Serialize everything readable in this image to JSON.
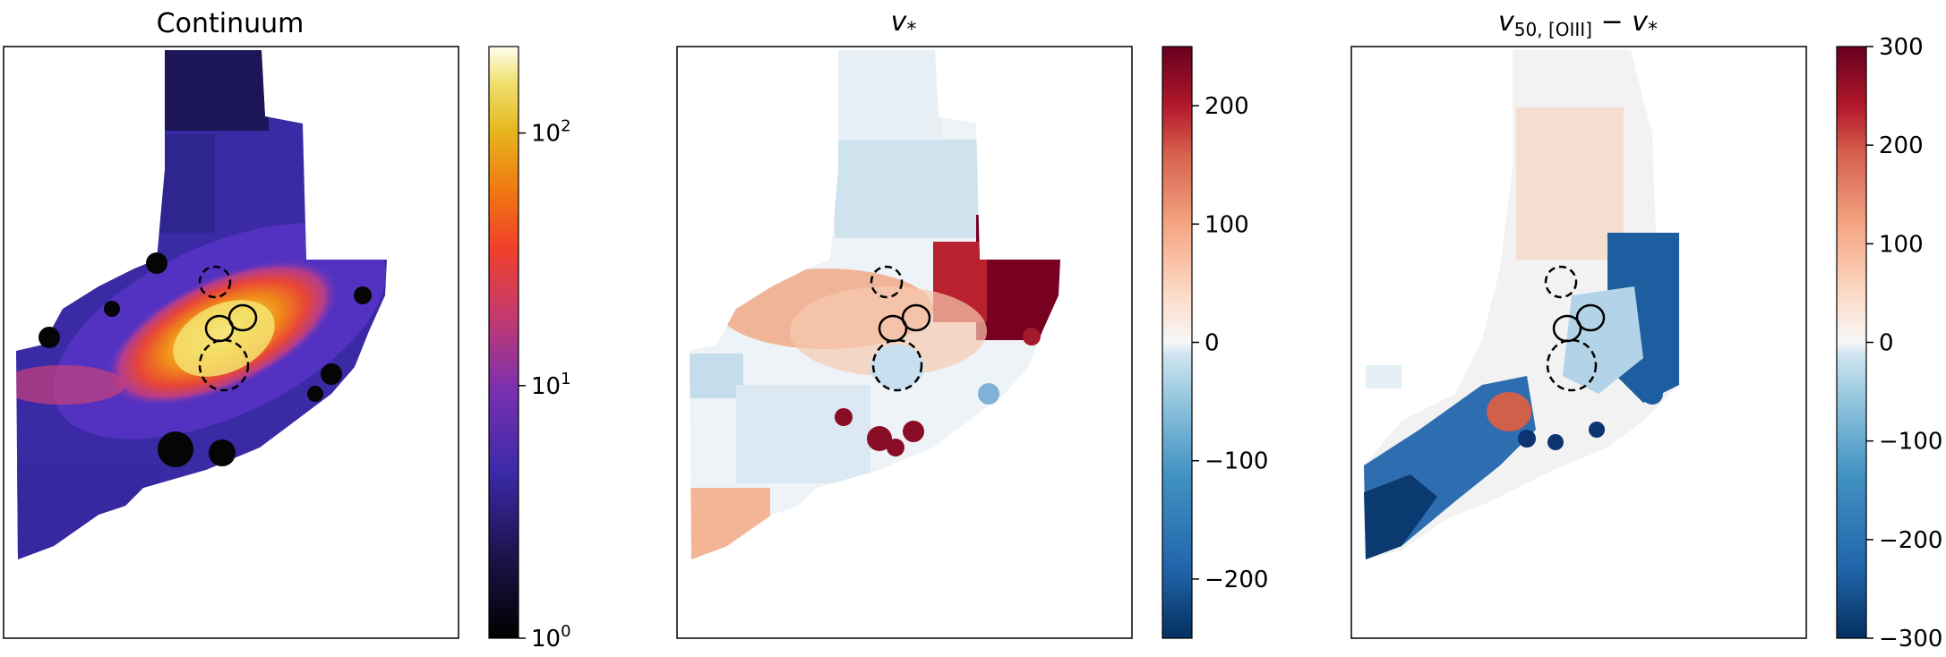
{
  "chart_data": [
    {
      "type": "heatmap",
      "title": "Continuum",
      "colormap": "CMRmap (black → purple → red → orange → yellow → white)",
      "colorbar": {
        "scale": "log",
        "range": [
          1,
          220
        ],
        "ticks": [
          {
            "value": 1,
            "label_base": "10",
            "label_exp": "0"
          },
          {
            "value": 10,
            "label_base": "10",
            "label_exp": "1"
          },
          {
            "value": 100,
            "label_base": "10",
            "label_exp": "2"
          }
        ]
      },
      "markers": [
        {
          "style": "dashed",
          "size": "small"
        },
        {
          "style": "solid",
          "size": "small"
        },
        {
          "style": "solid",
          "size": "small"
        },
        {
          "style": "dashed",
          "size": "large"
        }
      ]
    },
    {
      "type": "heatmap",
      "title": "v*",
      "title_main": "v",
      "title_sub": "*",
      "colormap": "RdBu_r (blue negative, white zero, red positive)",
      "colorbar": {
        "scale": "linear",
        "range": [
          -250,
          250
        ],
        "ticks": [
          {
            "value": 200,
            "label": "200"
          },
          {
            "value": 100,
            "label": "100"
          },
          {
            "value": 0,
            "label": "0"
          },
          {
            "value": -100,
            "label": "−100"
          },
          {
            "value": -200,
            "label": "−200"
          }
        ]
      },
      "markers": [
        {
          "style": "dashed",
          "size": "small"
        },
        {
          "style": "solid",
          "size": "small"
        },
        {
          "style": "solid",
          "size": "small"
        },
        {
          "style": "dashed",
          "size": "large"
        }
      ]
    },
    {
      "type": "heatmap",
      "title": "v50,[OIII] − v*",
      "title_main": "v",
      "title_sub1": "50, [OIII]",
      "title_minus": " − v",
      "title_sub2": "*",
      "colormap": "RdBu_r (blue negative, white zero, red positive)",
      "colorbar": {
        "scale": "linear",
        "range": [
          -300,
          300
        ],
        "ticks": [
          {
            "value": 300,
            "label": "300"
          },
          {
            "value": 200,
            "label": "200"
          },
          {
            "value": 100,
            "label": "100"
          },
          {
            "value": 0,
            "label": "0"
          },
          {
            "value": -100,
            "label": "−100"
          },
          {
            "value": -200,
            "label": "−200"
          },
          {
            "value": -300,
            "label": "−300"
          }
        ]
      },
      "markers": [
        {
          "style": "dashed",
          "size": "small"
        },
        {
          "style": "solid",
          "size": "small"
        },
        {
          "style": "solid",
          "size": "small"
        },
        {
          "style": "dashed",
          "size": "large"
        }
      ]
    }
  ]
}
